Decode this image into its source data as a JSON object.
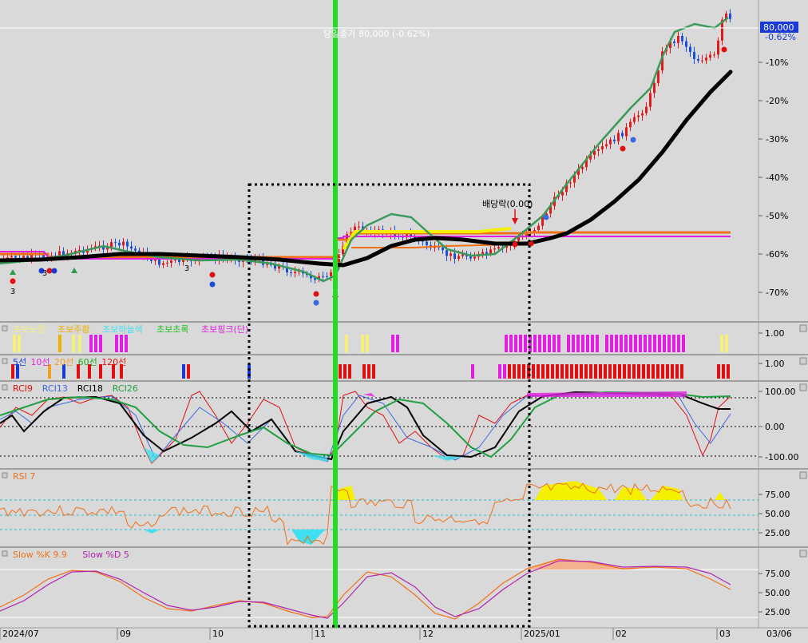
{
  "price_label": "80,000",
  "price_pct_label": "-0.62%",
  "price_note": "당일종가 80,000 (-0.62%)",
  "dividend_note": "배당락(0.00)",
  "main_axis": [
    "-10%",
    "-20%",
    "-30%",
    "-40%",
    "-50%",
    "-60%",
    "-70%"
  ],
  "signal_marks": [
    "3",
    "3",
    "3",
    "3"
  ],
  "x_axis": [
    "2024/07",
    "09",
    "10",
    "11",
    "12",
    "2025/01",
    "02",
    "03",
    "03/06"
  ],
  "colors": {
    "accent_green": "#22dd22",
    "candle_up": "#e0191a",
    "candle_down": "#1a4fd8",
    "ma_thick": "#000000",
    "ma_green": "#3a9a5a",
    "orange": "#f07018",
    "magenta": "#e020e0",
    "yellow": "#f5f000"
  },
  "panels": {
    "p1": {
      "legend": [
        "초보노랑",
        "초보주황",
        "초보하늘색",
        "초보초록",
        "초보핑크(단)"
      ],
      "legend_colors": [
        "#f5f07a",
        "#f0b000",
        "#40e0f0",
        "#22c422",
        "#e020e0"
      ],
      "axis": [
        "1.00"
      ]
    },
    "p2": {
      "legend": [
        "5선",
        "10선",
        "20선",
        "60선",
        "120선"
      ],
      "legend_colors": [
        "#1a3ad8",
        "#e020e0",
        "#f0a020",
        "#22aa22",
        "#e01010"
      ],
      "axis": [
        "1.00"
      ]
    },
    "rci": {
      "legend": [
        "RCI9",
        "RCI13",
        "RCI18",
        "RCI26"
      ],
      "legend_colors": [
        "#e01010",
        "#3a6ae0",
        "#000000",
        "#20a040"
      ],
      "axis": [
        "100.00",
        "0.00",
        "-100.00"
      ]
    },
    "rsi": {
      "legend": [
        "RSI 7"
      ],
      "legend_colors": [
        "#f07018"
      ],
      "axis": [
        "75.00",
        "50.00",
        "25.00"
      ]
    },
    "stoch": {
      "legend": [
        "Slow %K 9.9",
        "Slow %D 5"
      ],
      "legend_colors": [
        "#f07018",
        "#b020b0"
      ],
      "axis": [
        "75.00",
        "50.00",
        "25.00"
      ]
    }
  },
  "chart_data": {
    "type": "candlestick",
    "title": "",
    "x": [
      "2024/07",
      "09",
      "10",
      "11",
      "12",
      "2025/01",
      "02",
      "03"
    ],
    "y_axis_unit": "%",
    "ylim": [
      -75,
      5
    ],
    "last_close": 80000,
    "last_change_pct": -0.62,
    "series": [
      {
        "name": "RCI9",
        "type": "line"
      },
      {
        "name": "RCI13",
        "type": "line"
      },
      {
        "name": "RCI18",
        "type": "line"
      },
      {
        "name": "RCI26",
        "type": "line"
      },
      {
        "name": "RSI 7",
        "type": "line",
        "ylim": [
          0,
          100
        ]
      },
      {
        "name": "Slow %K 9.9",
        "type": "line",
        "ylim": [
          0,
          100
        ]
      },
      {
        "name": "Slow %D 5",
        "type": "line",
        "ylim": [
          0,
          100
        ]
      }
    ],
    "approx_price_pct_path": {
      "x": [
        "2024/07",
        "09",
        "10",
        "11",
        "12",
        "2025/01",
        "02",
        "03"
      ],
      "values": [
        -62,
        -61,
        -62,
        -64,
        -60,
        -57,
        -25,
        -5
      ]
    },
    "grid": false
  }
}
